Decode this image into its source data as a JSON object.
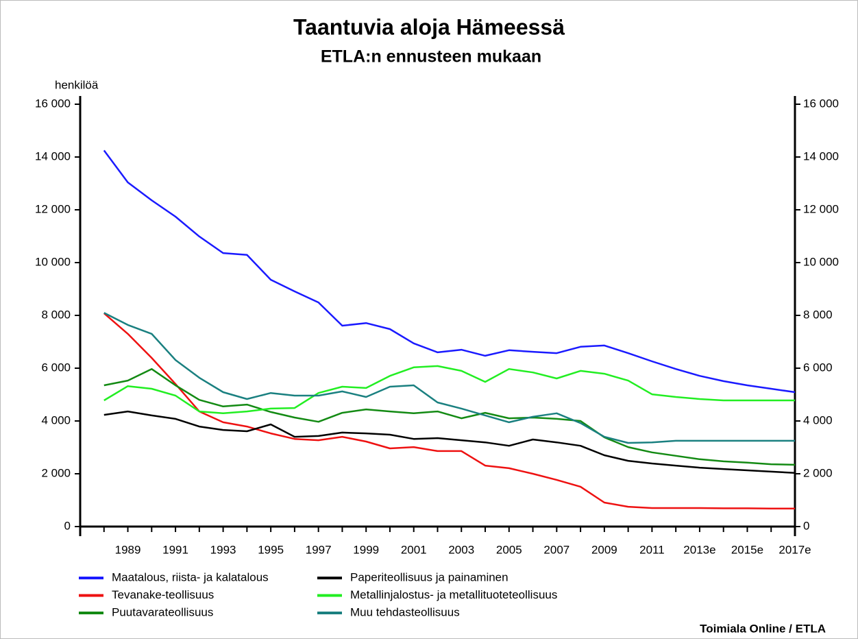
{
  "chart_data": {
    "type": "line",
    "title": "Taantuvia aloja Hämeessä",
    "subtitle": "ETLA:n ennusteen mukaan",
    "y_label": "henkilöä",
    "source": "Toimiala Online / ETLA",
    "categories": [
      null,
      "1989",
      null,
      "1991",
      null,
      "1993",
      null,
      "1995",
      null,
      "1997",
      null,
      "1999",
      null,
      "2001",
      null,
      "2003",
      null,
      "2005",
      null,
      "2007",
      null,
      "2009",
      null,
      "2011",
      null,
      "2013e",
      null,
      "2015e",
      null,
      "2017e"
    ],
    "ylim": [
      0,
      16000
    ],
    "yticks": [
      0,
      {
        "value": 2000,
        "label": "2 000"
      },
      {
        "value": 4000,
        "label": "4 000"
      },
      {
        "value": 6000,
        "label": "6 000"
      },
      {
        "value": 8000,
        "label": "8 000"
      },
      {
        "value": 10000,
        "label": "10 000"
      },
      {
        "value": 12000,
        "label": "12 000"
      },
      {
        "value": 14000,
        "label": "14 000"
      },
      {
        "value": 16000,
        "label": "16 000"
      }
    ],
    "y2lim": [
      0,
      16000
    ],
    "y2ticks": [
      0,
      {
        "value": 2000,
        "label": "2 000"
      },
      {
        "value": 4000,
        "label": "4 000"
      },
      {
        "value": 6000,
        "label": "6 000"
      },
      {
        "value": 8000,
        "label": "8 000"
      },
      {
        "value": 10000,
        "label": "10 000"
      },
      {
        "value": 12000,
        "label": "12 000"
      },
      {
        "value": 14000,
        "label": "14 000"
      },
      {
        "value": 16000,
        "label": "16 000"
      }
    ],
    "grid": false,
    "series": [
      {
        "name": "Maatalous, riista- ja kalatalous",
        "color": "#1a1aff",
        "values": [
          14250,
          13040,
          12360,
          11740,
          10990,
          10360,
          10290,
          9350,
          8910,
          8490,
          7610,
          7710,
          7480,
          6940,
          6600,
          6700,
          6470,
          6680,
          6620,
          6570,
          6810,
          6860,
          6570,
          6260,
          5970,
          5710,
          5510,
          5350,
          5220,
          5090
        ]
      },
      {
        "name": "Tevanake-teollisuus",
        "color": "#ee1111",
        "values": [
          8080,
          7300,
          6390,
          5400,
          4360,
          3950,
          3790,
          3530,
          3320,
          3270,
          3400,
          3220,
          2960,
          3010,
          2860,
          2860,
          2310,
          2210,
          2000,
          1770,
          1510,
          910,
          750,
          700,
          700,
          700,
          690,
          690,
          680,
          680
        ]
      },
      {
        "name": "Puutavarateollisuus",
        "color": "#138a13",
        "values": [
          5350,
          5530,
          5970,
          5350,
          4800,
          4550,
          4620,
          4340,
          4130,
          3970,
          4310,
          4440,
          4360,
          4290,
          4360,
          4100,
          4310,
          4100,
          4130,
          4080,
          4000,
          3380,
          3010,
          2810,
          2680,
          2550,
          2470,
          2420,
          2360,
          2340
        ]
      },
      {
        "name": "Paperiteollisuus ja painaminen",
        "color": "#000000",
        "values": [
          4230,
          4360,
          4210,
          4080,
          3790,
          3660,
          3610,
          3870,
          3400,
          3430,
          3560,
          3530,
          3480,
          3320,
          3350,
          3270,
          3190,
          3060,
          3300,
          3190,
          3060,
          2700,
          2490,
          2390,
          2310,
          2230,
          2180,
          2130,
          2080,
          2030
        ]
      },
      {
        "name": "Metallinjalostus- ja metallituoteteollisuus",
        "color": "#22ee22",
        "values": [
          4780,
          5320,
          5220,
          4960,
          4360,
          4290,
          4360,
          4470,
          4490,
          5060,
          5300,
          5250,
          5710,
          6030,
          6080,
          5900,
          5480,
          5970,
          5840,
          5610,
          5900,
          5790,
          5530,
          5010,
          4910,
          4830,
          4780,
          4780,
          4780,
          4780
        ]
      },
      {
        "name": "Muu tehdasteollisuus",
        "color": "#1a8080",
        "values": [
          8100,
          7640,
          7300,
          6310,
          5640,
          5090,
          4830,
          5060,
          4960,
          4960,
          5120,
          4910,
          5300,
          5350,
          4700,
          4470,
          4210,
          3950,
          4160,
          4290,
          3920,
          3400,
          3170,
          3190,
          3250,
          3250,
          3250,
          3250,
          3250,
          3250
        ]
      }
    ]
  }
}
